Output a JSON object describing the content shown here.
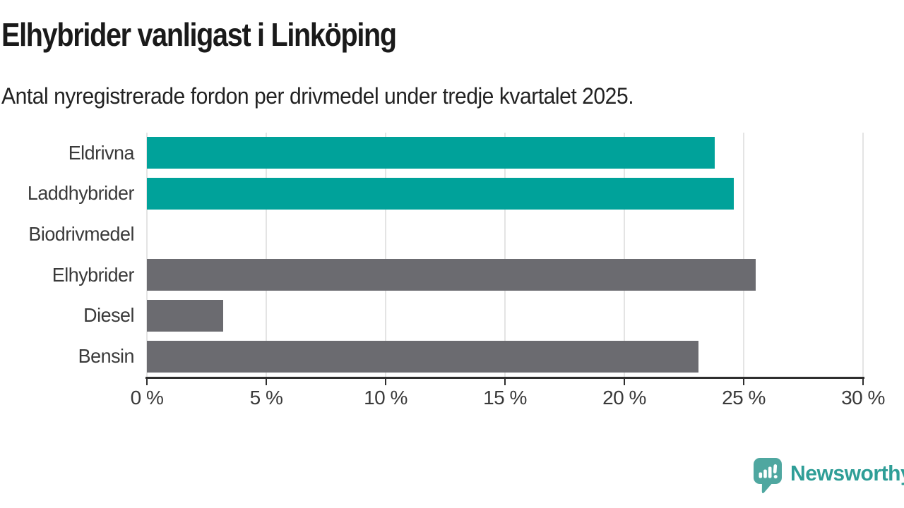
{
  "header": {
    "title": "Elhybrider vanligast i Linköping",
    "subtitle": "Antal nyregistrerade fordon per drivmedel under tredje kvartalet 2025."
  },
  "chart_data": {
    "type": "bar",
    "orientation": "horizontal",
    "title": "Elhybrider vanligast i Linköping",
    "subtitle": "Antal nyregistrerade fordon per drivmedel under tredje kvartalet 2025.",
    "categories": [
      "Eldrivna",
      "Laddhybrider",
      "Biodrivmedel",
      "Elhybrider",
      "Diesel",
      "Bensin"
    ],
    "values": [
      23.8,
      24.6,
      0,
      25.5,
      3.2,
      23.1
    ],
    "unit": "%",
    "bar_colors": [
      "#00a29a",
      "#00a29a",
      "#00a29a",
      "#6b6b70",
      "#6b6b70",
      "#6b6b70"
    ],
    "xlim": [
      0,
      30
    ],
    "xticks": [
      0,
      5,
      10,
      15,
      20,
      25,
      30
    ],
    "xtick_labels": [
      "0 %",
      "5 %",
      "10 %",
      "15 %",
      "20 %",
      "25 %",
      "30 %"
    ],
    "grid": "vertical",
    "legend": "none"
  },
  "colors": {
    "accent_teal": "#00a29a",
    "neutral_gray": "#6b6b70",
    "gridline": "#e4e4e4",
    "axis": "#2e2e2e",
    "brand_teal": "#2f9e97",
    "brand_icon": "#4fa7a0"
  },
  "footer": {
    "brand": "Newsworthy",
    "brand_icon": "bar-chart-speech-bubble-icon"
  }
}
